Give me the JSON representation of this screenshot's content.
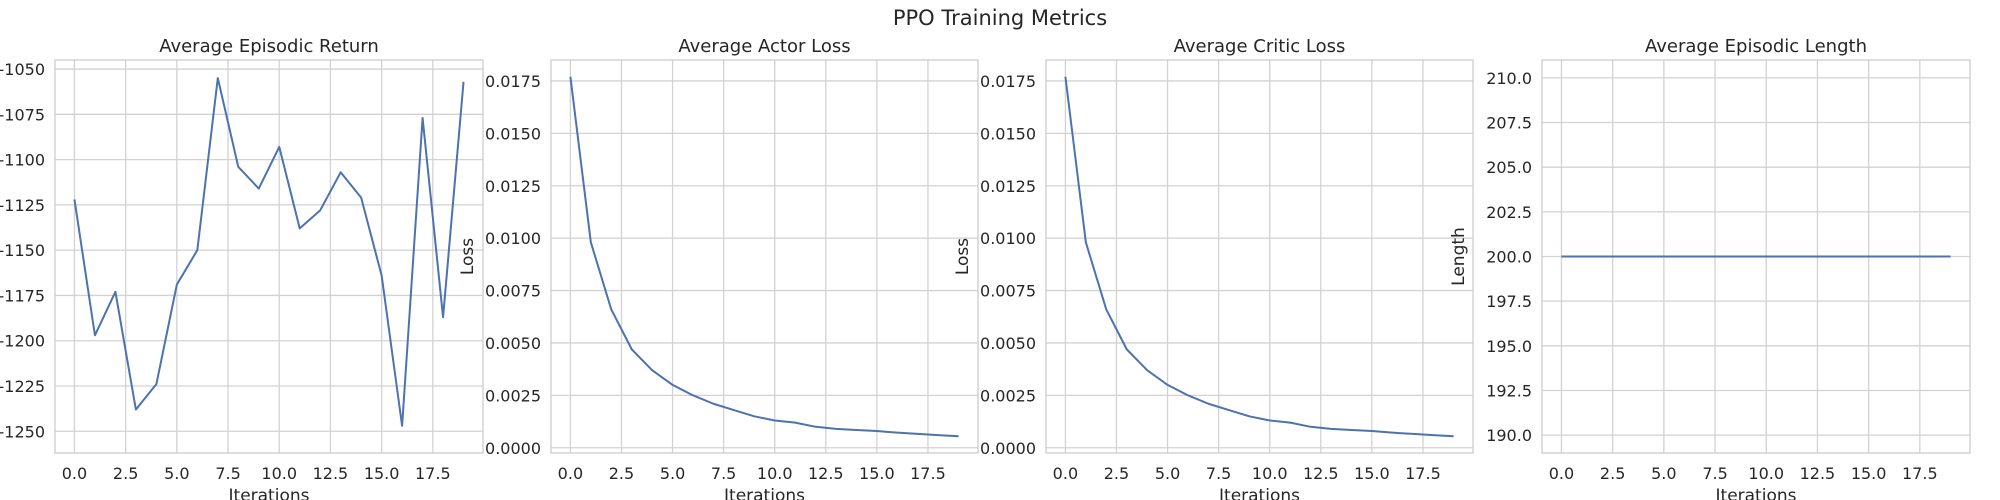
{
  "figure_title": "PPO Training Metrics",
  "chart_data": [
    {
      "type": "line",
      "title": "Average Episodic Return",
      "xlabel": "Iterations",
      "ylabel": "",
      "xlim": [
        -0.95,
        19.95
      ],
      "ylim": [
        -1262,
        -1045
      ],
      "xticks": [
        0,
        2.5,
        5,
        7.5,
        10,
        12.5,
        15,
        17.5
      ],
      "xtick_labels": [
        "0.0",
        "2.5",
        "5.0",
        "7.5",
        "10.0",
        "12.5",
        "15.0",
        "17.5"
      ],
      "yticks": [
        -1050,
        -1075,
        -1100,
        -1125,
        -1150,
        -1175,
        -1200,
        -1225,
        -1250
      ],
      "ytick_labels": [
        "-1050",
        "-1075",
        "-1100",
        "-1125",
        "-1150",
        "-1175",
        "-1200",
        "-1225",
        "-1250"
      ],
      "grid": true,
      "x": [
        0,
        1,
        2,
        3,
        4,
        5,
        6,
        7,
        8,
        9,
        10,
        11,
        12,
        13,
        14,
        15,
        16,
        17,
        18,
        19
      ],
      "series": [
        {
          "color": "#4c72b0",
          "values": [
            -1122,
            -1197,
            -1173,
            -1238,
            -1224,
            -1169,
            -1150,
            -1055,
            -1104,
            -1116,
            -1093,
            -1138,
            -1128,
            -1107,
            -1121,
            -1164,
            -1247,
            -1077,
            -1187,
            -1057
          ]
        }
      ]
    },
    {
      "type": "line",
      "title": "Average Actor Loss",
      "xlabel": "Iterations",
      "ylabel": "Loss",
      "xlim": [
        -0.95,
        19.95
      ],
      "ylim": [
        -0.00025,
        0.0185
      ],
      "xticks": [
        0,
        2.5,
        5,
        7.5,
        10,
        12.5,
        15,
        17.5
      ],
      "xtick_labels": [
        "0.0",
        "2.5",
        "5.0",
        "7.5",
        "10.0",
        "12.5",
        "15.0",
        "17.5"
      ],
      "yticks": [
        0,
        0.0025,
        0.005,
        0.0075,
        0.01,
        0.0125,
        0.015,
        0.0175
      ],
      "ytick_labels": [
        "0.0000",
        "0.0025",
        "0.0050",
        "0.0075",
        "0.0100",
        "0.0125",
        "0.0150",
        "0.0175"
      ],
      "grid": true,
      "x": [
        0,
        1,
        2,
        3,
        4,
        5,
        6,
        7,
        8,
        9,
        10,
        11,
        12,
        13,
        14,
        15,
        16,
        17,
        18,
        19
      ],
      "series": [
        {
          "color": "#4c72b0",
          "values": [
            0.0177,
            0.0098,
            0.0066,
            0.0047,
            0.0037,
            0.003,
            0.0025,
            0.0021,
            0.0018,
            0.0015,
            0.0013,
            0.0012,
            0.001,
            0.0009,
            0.00085,
            0.0008,
            0.00072,
            0.00066,
            0.0006,
            0.00055
          ]
        }
      ]
    },
    {
      "type": "line",
      "title": "Average Critic Loss",
      "xlabel": "Iterations",
      "ylabel": "Loss",
      "xlim": [
        -0.95,
        19.95
      ],
      "ylim": [
        -0.00025,
        0.0185
      ],
      "xticks": [
        0,
        2.5,
        5,
        7.5,
        10,
        12.5,
        15,
        17.5
      ],
      "xtick_labels": [
        "0.0",
        "2.5",
        "5.0",
        "7.5",
        "10.0",
        "12.5",
        "15.0",
        "17.5"
      ],
      "yticks": [
        0,
        0.0025,
        0.005,
        0.0075,
        0.01,
        0.0125,
        0.015,
        0.0175
      ],
      "ytick_labels": [
        "0.0000",
        "0.0025",
        "0.0050",
        "0.0075",
        "0.0100",
        "0.0125",
        "0.0150",
        "0.0175"
      ],
      "grid": true,
      "x": [
        0,
        1,
        2,
        3,
        4,
        5,
        6,
        7,
        8,
        9,
        10,
        11,
        12,
        13,
        14,
        15,
        16,
        17,
        18,
        19
      ],
      "series": [
        {
          "color": "#4c72b0",
          "values": [
            0.0177,
            0.0098,
            0.0066,
            0.0047,
            0.0037,
            0.003,
            0.0025,
            0.0021,
            0.0018,
            0.0015,
            0.0013,
            0.0012,
            0.001,
            0.0009,
            0.00085,
            0.0008,
            0.00072,
            0.00066,
            0.0006,
            0.00055
          ]
        }
      ]
    },
    {
      "type": "line",
      "title": "Average Episodic Length",
      "xlabel": "Iterations",
      "ylabel": "Length",
      "xlim": [
        -0.95,
        19.95
      ],
      "ylim": [
        189,
        211
      ],
      "xticks": [
        0,
        2.5,
        5,
        7.5,
        10,
        12.5,
        15,
        17.5
      ],
      "xtick_labels": [
        "0.0",
        "2.5",
        "5.0",
        "7.5",
        "10.0",
        "12.5",
        "15.0",
        "17.5"
      ],
      "yticks": [
        190,
        192.5,
        195,
        197.5,
        200,
        202.5,
        205,
        207.5,
        210
      ],
      "ytick_labels": [
        "190.0",
        "192.5",
        "195.0",
        "197.5",
        "200.0",
        "202.5",
        "205.0",
        "207.5",
        "210.0"
      ],
      "grid": true,
      "x": [
        0,
        1,
        2,
        3,
        4,
        5,
        6,
        7,
        8,
        9,
        10,
        11,
        12,
        13,
        14,
        15,
        16,
        17,
        18,
        19
      ],
      "series": [
        {
          "color": "#4c72b0",
          "values": [
            200,
            200,
            200,
            200,
            200,
            200,
            200,
            200,
            200,
            200,
            200,
            200,
            200,
            200,
            200,
            200,
            200,
            200,
            200,
            200
          ]
        }
      ]
    }
  ]
}
